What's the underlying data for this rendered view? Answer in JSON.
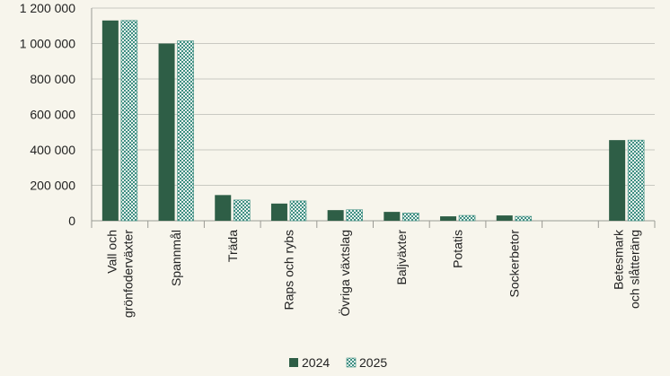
{
  "chart_data": {
    "type": "bar",
    "categories": [
      [
        "Vall och",
        "grönfoderväxter"
      ],
      [
        "Spannmål"
      ],
      [
        "Träda"
      ],
      [
        "Raps och rybs"
      ],
      [
        "Övriga växtslag"
      ],
      [
        "Baljväxter"
      ],
      [
        "Potatis"
      ],
      [
        "Sockerbetor"
      ],
      [],
      [
        "Betesmark",
        "och slåtteräng"
      ]
    ],
    "series": [
      {
        "name": "2024",
        "values": [
          1130000,
          1000000,
          145000,
          97000,
          60000,
          50000,
          25000,
          30000,
          null,
          455000
        ],
        "color": "#2e5e46"
      },
      {
        "name": "2025",
        "values": [
          1130000,
          1015000,
          117000,
          112000,
          62000,
          44000,
          30000,
          25000,
          null,
          455000
        ],
        "color": "#3f8f82",
        "pattern": "checkered"
      }
    ],
    "ylim": [
      0,
      1200000
    ],
    "yticks": [
      0,
      200000,
      400000,
      600000,
      800000,
      1000000,
      1200000
    ],
    "ytick_labels": [
      "0",
      "200 000",
      "400 000",
      "600 000",
      "800 000",
      "1 000 000",
      "1 200 000"
    ],
    "grid": true,
    "legend_position": "bottom-center",
    "title": "",
    "xlabel": "",
    "ylabel": ""
  }
}
